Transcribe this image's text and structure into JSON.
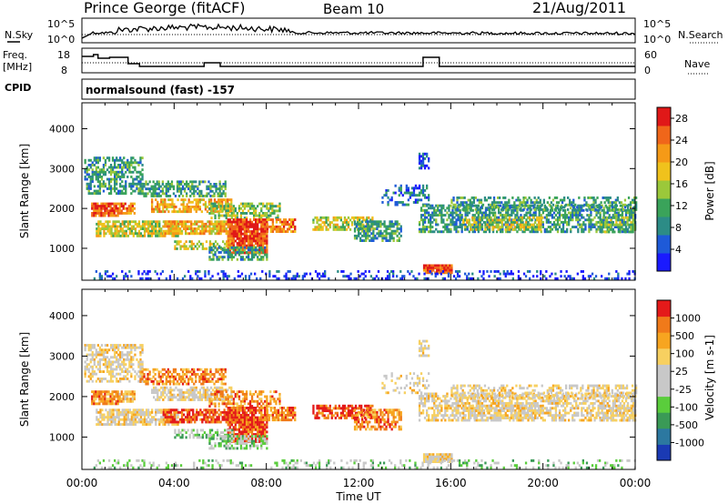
{
  "header": {
    "station": "Prince George (fitACF)",
    "beam": "Beam 10",
    "date": "21/Aug/2011"
  },
  "noise_panel": {
    "left_label": "N.Sky",
    "right_label": "N.Search",
    "tick_top": "10^5",
    "tick_bottom": "10^0"
  },
  "freq_panel": {
    "left_label_1": "Freq.",
    "left_label_2": "[MHz]",
    "right_label": "Nave",
    "left_ticks": [
      "18",
      "8"
    ],
    "right_ticks": [
      "60",
      "0"
    ]
  },
  "cpid": {
    "label": "CPID",
    "value": "normalsound (fast) -157"
  },
  "colors": {
    "power": [
      "#1a1aff",
      "#1e5ad8",
      "#2c8c86",
      "#3aa35a",
      "#9bc83a",
      "#f0c21c",
      "#f59a17",
      "#f0661a",
      "#e01818"
    ],
    "velocity": [
      "#e41a1a",
      "#f07a1a",
      "#f7a520",
      "#f7d060",
      "#c8c8c8",
      "#c8c8c8",
      "#5acd3c",
      "#3a9a56",
      "#2c78a0",
      "#1a3ab4"
    ]
  },
  "chart_data": [
    {
      "type": "heatmap",
      "title": "",
      "xlabel": "Time UT",
      "ylabel": "Slant Range [km]",
      "x_ticks": [
        "00:00",
        "04:00",
        "08:00",
        "12:00",
        "16:00",
        "20:00",
        "00:00"
      ],
      "xlim_hours": [
        0,
        24
      ],
      "y_ticks": [
        1000,
        2000,
        3000,
        4000
      ],
      "ylim": [
        200,
        4650
      ],
      "colorbar_label": "Power [dB]",
      "colorbar_ticks": [
        4,
        8,
        12,
        16,
        20,
        24,
        28
      ],
      "colorbar_range": [
        0,
        30
      ]
    },
    {
      "type": "heatmap",
      "title": "",
      "xlabel": "Time UT",
      "ylabel": "Slant Range [km]",
      "x_ticks": [
        "00:00",
        "04:00",
        "08:00",
        "12:00",
        "16:00",
        "20:00",
        "00:00"
      ],
      "xlim_hours": [
        0,
        24
      ],
      "y_ticks": [
        1000,
        2000,
        3000,
        4000
      ],
      "ylim": [
        200,
        4650
      ],
      "colorbar_label": "Velocity [m s-1]",
      "colorbar_ticks": [
        "1000",
        "500",
        "100",
        "25",
        "-25",
        "-100",
        "-500",
        "-1000"
      ]
    }
  ]
}
